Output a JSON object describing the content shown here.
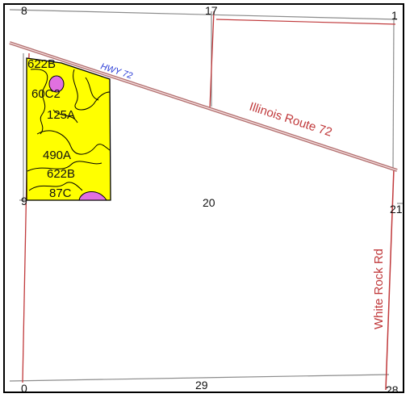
{
  "map": {
    "colors": {
      "section_line": "#8c8c8c",
      "road_line": "#c0393b",
      "soil_fill": "#ffff00",
      "soil_inclusion": "#e070e0",
      "highway_label": "#2a3bd6",
      "road_label": "#c0393b"
    },
    "roads": {
      "hwy_label": "HWY 72",
      "route_label": "Illinois Route 72",
      "white_rock_label": "White Rock Rd"
    },
    "sections": {
      "top_left": "8",
      "top_mid": "17",
      "top_right": "1",
      "left_mid": "9",
      "center": "20",
      "right_mid": "21",
      "bottom_left": "0",
      "bottom_mid": "29",
      "bottom_right": "28"
    },
    "soil_units": [
      "622B",
      "60C2",
      "125A",
      "490A",
      "622B",
      "87C"
    ]
  }
}
